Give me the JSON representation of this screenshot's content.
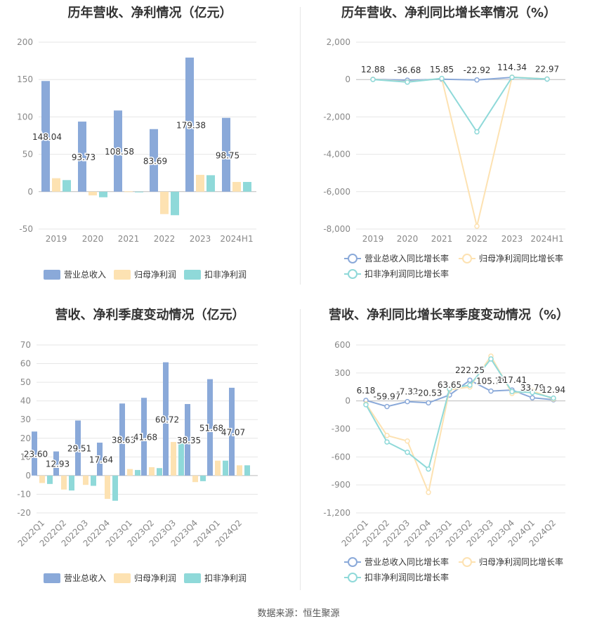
{
  "colors": {
    "revenue": "#8aa9d9",
    "net_profit": "#fde2b2",
    "deducted_profit": "#8fd9d9",
    "line_rev": "#8aa9d9",
    "line_np": "#fde2b2",
    "line_dnp": "#8fd9d9",
    "grid": "#e6e6e6",
    "axis_text": "#888888"
  },
  "footer": {
    "source": "数据来源：恒生聚源"
  },
  "chart_data": [
    {
      "id": "annual_values",
      "type": "bar",
      "title": "历年营收、净利情况（亿元）",
      "categories": [
        "2019",
        "2020",
        "2021",
        "2022",
        "2023",
        "2024H1"
      ],
      "yticks": [
        "200",
        "150",
        "100",
        "50",
        "0",
        "-50"
      ],
      "ylim": [
        -50,
        200
      ],
      "series": [
        {
          "name": "营业总收入",
          "values": [
            148.04,
            93.73,
            108.58,
            83.69,
            179.38,
            98.75
          ],
          "labels": [
            "148.04",
            "93.73",
            "108.58",
            "83.69",
            "179.38",
            "98.75"
          ]
        },
        {
          "name": "归母净利润",
          "values": [
            18,
            -5,
            0.5,
            -30,
            22.5,
            13
          ]
        },
        {
          "name": "扣非净利润",
          "values": [
            15.5,
            -7.5,
            -0.5,
            -31.5,
            22,
            13
          ]
        }
      ],
      "legend_position": "bottom"
    },
    {
      "id": "annual_growth",
      "type": "line",
      "title": "历年营收、净利同比增长率情况（%）",
      "categories": [
        "2019",
        "2020",
        "2021",
        "2022",
        "2023",
        "2024H1"
      ],
      "yticks": [
        "2,000",
        "0",
        "-2,000",
        "-4,000",
        "-6,000",
        "-8,000"
      ],
      "ylim": [
        -8000,
        2000
      ],
      "series": [
        {
          "name": "营业总收入同比增长率",
          "values": [
            12.88,
            -36.68,
            15.85,
            -22.92,
            114.34,
            22.97
          ],
          "labels": [
            "12.88",
            "-36.68",
            "15.85",
            "-22.92",
            "114.34",
            "22.97"
          ]
        },
        {
          "name": "归母净利润同比增长率",
          "values": [
            10,
            -120,
            50,
            -7850,
            130,
            30
          ]
        },
        {
          "name": "扣非净利润同比增长率",
          "values": [
            5,
            -140,
            60,
            -2800,
            120,
            25
          ]
        }
      ],
      "legend_position": "bottom"
    },
    {
      "id": "quarterly_values",
      "type": "bar",
      "title": "营收、净利季度变动情况（亿元）",
      "categories": [
        "2022Q1",
        "2022Q2",
        "2022Q3",
        "2022Q4",
        "2023Q1",
        "2023Q2",
        "2023Q3",
        "2023Q4",
        "2024Q1",
        "2024Q2"
      ],
      "yticks": [
        "70",
        "60",
        "50",
        "40",
        "30",
        "20",
        "10",
        "0",
        "-10",
        "-20"
      ],
      "ylim": [
        -20,
        70
      ],
      "series": [
        {
          "name": "营业总收入",
          "values": [
            23.6,
            12.93,
            29.51,
            17.64,
            38.63,
            41.68,
            60.72,
            38.35,
            51.68,
            47.07
          ],
          "labels": [
            "23.60",
            "12.93",
            "29.51",
            "17.64",
            "38.63",
            "41.68",
            "60.72",
            "38.35",
            "51.68",
            "47.07"
          ]
        },
        {
          "name": "归母净利润",
          "values": [
            -4,
            -7.5,
            -5,
            -12.5,
            3.5,
            4.5,
            18,
            -3.5,
            8,
            5.5
          ]
        },
        {
          "name": "扣非净利润",
          "values": [
            -4.5,
            -8,
            -5.5,
            -13.5,
            3,
            4,
            17.5,
            -3,
            8,
            5.5
          ]
        }
      ],
      "legend_position": "bottom"
    },
    {
      "id": "quarterly_growth",
      "type": "line",
      "title": "营收、净利同比增长率季度变动情况（%）",
      "categories": [
        "2022Q1",
        "2022Q2",
        "2022Q3",
        "2022Q4",
        "2023Q1",
        "2023Q2",
        "2023Q3",
        "2023Q4",
        "2024Q1",
        "2024Q2"
      ],
      "yticks": [
        "600",
        "300",
        "0",
        "-300",
        "-600",
        "-900",
        "-1,200"
      ],
      "ylim": [
        -1200,
        600
      ],
      "series": [
        {
          "name": "营业总收入同比增长率",
          "values": [
            6.18,
            -59.97,
            -7.32,
            -20.53,
            63.65,
            222.25,
            105.71,
            117.41,
            33.79,
            12.94
          ],
          "labels": [
            "6.18",
            "-59.97",
            "-7.32",
            "-20.53",
            "63.65",
            "222.25",
            "105.71",
            "117.41",
            "33.79",
            "12.94"
          ]
        },
        {
          "name": "归母净利润同比增长率",
          "values": [
            -30,
            -370,
            -430,
            -980,
            120,
            150,
            480,
            80,
            110,
            20
          ]
        },
        {
          "name": "扣非净利润同比增长率",
          "values": [
            -40,
            -440,
            -550,
            -730,
            130,
            170,
            450,
            100,
            90,
            30
          ]
        }
      ],
      "legend_position": "bottom"
    }
  ]
}
